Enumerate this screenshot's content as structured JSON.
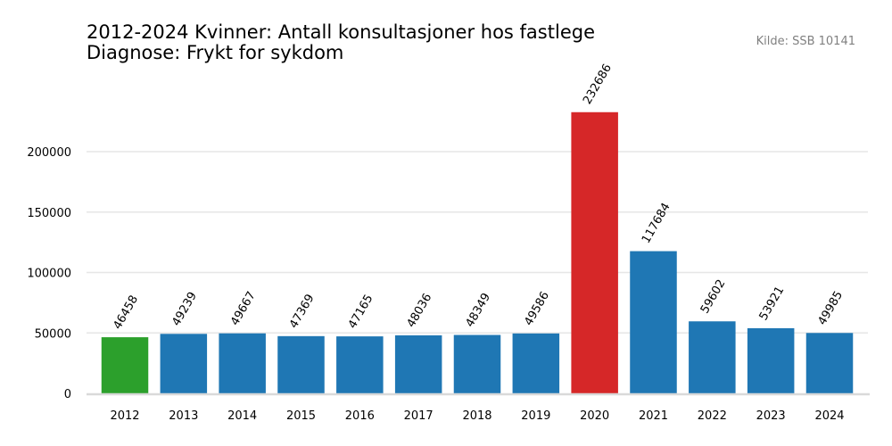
{
  "chart_data": {
    "type": "bar",
    "title_line1": "2012-2024 Kvinner: Antall konsultasjoner hos fastlege",
    "title_line2": "Diagnose: Frykt for sykdom",
    "source": "Kilde: SSB 10141",
    "xlabel": "",
    "ylabel": "",
    "categories": [
      "2012",
      "2013",
      "2014",
      "2015",
      "2016",
      "2017",
      "2018",
      "2019",
      "2020",
      "2021",
      "2022",
      "2023",
      "2024"
    ],
    "values": [
      46458,
      49239,
      49667,
      47369,
      47165,
      48036,
      48349,
      49586,
      232686,
      117684,
      59602,
      53921,
      49985
    ],
    "value_labels": [
      "46458",
      "49239",
      "49667",
      "47369",
      "47165",
      "48036",
      "48349",
      "49586",
      "232686",
      "117684",
      "59602",
      "53921",
      "49985"
    ],
    "bar_colors": [
      "#2ca02c",
      "#1f77b4",
      "#1f77b4",
      "#1f77b4",
      "#1f77b4",
      "#1f77b4",
      "#1f77b4",
      "#1f77b4",
      "#d62728",
      "#1f77b4",
      "#1f77b4",
      "#1f77b4",
      "#1f77b4"
    ],
    "yticks": [
      0,
      50000,
      100000,
      150000,
      200000
    ],
    "ytick_labels": [
      "0",
      "50000",
      "100000",
      "150000",
      "200000"
    ],
    "ylim": [
      0,
      244320
    ],
    "grid": true,
    "gridColor": "#e6e6e6",
    "baselineColor": "#d9d9d9"
  }
}
